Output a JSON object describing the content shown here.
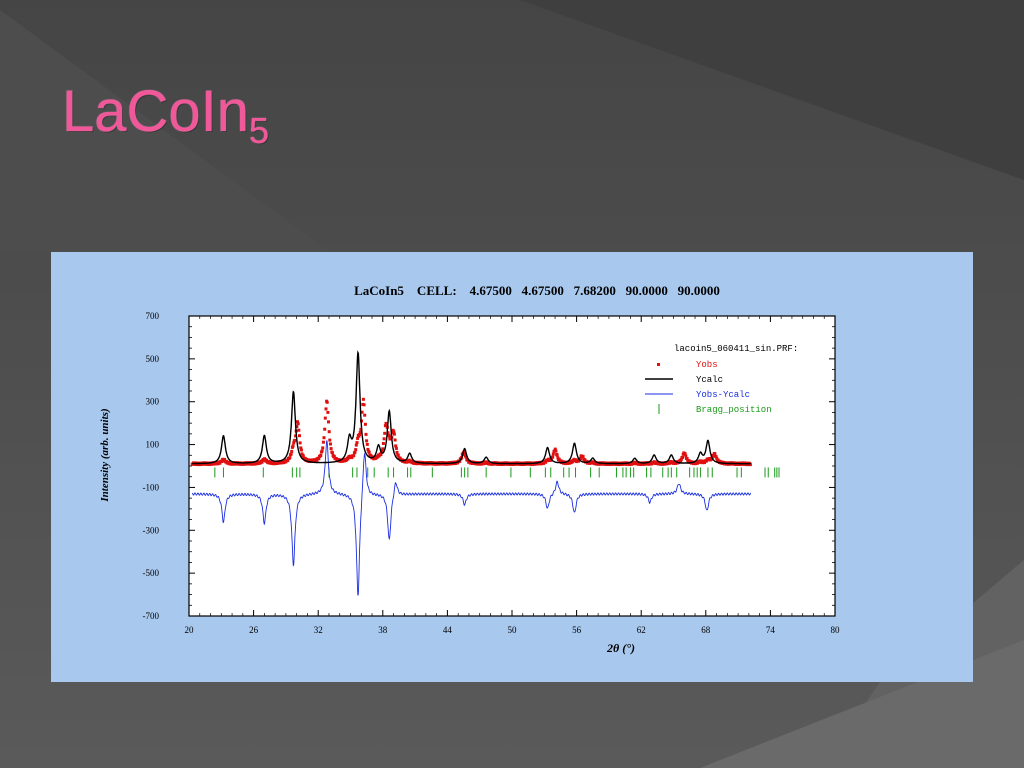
{
  "slide": {
    "title_main": "LaCoIn",
    "title_sub": "5"
  },
  "colors": {
    "title": "#f0589a",
    "panel_bg": "#a8c8ee",
    "yobs": "#e01010",
    "ycalc": "#000000",
    "diff": "#1a2ee0",
    "bragg": "#1a9a1a"
  },
  "chart_data": {
    "type": "line",
    "title": "LaCoIn5    CELL:    4.67500   4.67500   7.68200   90.0000   90.0000",
    "xlabel": "2θ (°)",
    "ylabel": "Intensity (arb. units)",
    "xlim": [
      20,
      80
    ],
    "ylim": [
      -700,
      700
    ],
    "x_ticks": [
      20,
      26,
      32,
      38,
      44,
      50,
      56,
      62,
      68,
      74,
      80
    ],
    "y_ticks": [
      700,
      500,
      300,
      100,
      -100,
      -300,
      -500,
      -700
    ],
    "legend_position": "top-right",
    "legend": {
      "file": "lacoin5_060411_sin.PRF:",
      "entries": [
        "Yobs",
        "Ycalc",
        "Yobs-Ycalc",
        "Bragg_position"
      ]
    },
    "baseline": 10,
    "x_range_data": [
      20.3,
      72.2
    ],
    "ycalc_peaks": [
      {
        "x": 23.2,
        "y": 140
      },
      {
        "x": 27.0,
        "y": 140
      },
      {
        "x": 29.7,
        "y": 345
      },
      {
        "x": 35.7,
        "y": 520
      },
      {
        "x": 34.9,
        "y": 110
      },
      {
        "x": 38.6,
        "y": 250
      },
      {
        "x": 37.6,
        "y": 80
      },
      {
        "x": 40.5,
        "y": 55
      },
      {
        "x": 45.6,
        "y": 80
      },
      {
        "x": 47.6,
        "y": 40
      },
      {
        "x": 53.3,
        "y": 85
      },
      {
        "x": 55.8,
        "y": 105
      },
      {
        "x": 57.5,
        "y": 35
      },
      {
        "x": 61.4,
        "y": 35
      },
      {
        "x": 63.2,
        "y": 50
      },
      {
        "x": 64.8,
        "y": 50
      },
      {
        "x": 68.2,
        "y": 115
      },
      {
        "x": 67.5,
        "y": 55
      }
    ],
    "yobs_peaks": [
      {
        "x": 30.1,
        "y": 190
      },
      {
        "x": 32.8,
        "y": 300
      },
      {
        "x": 36.2,
        "y": 290
      },
      {
        "x": 38.3,
        "y": 170
      },
      {
        "x": 39.0,
        "y": 140
      },
      {
        "x": 45.5,
        "y": 55
      },
      {
        "x": 54.0,
        "y": 75
      },
      {
        "x": 56.5,
        "y": 45
      },
      {
        "x": 66.0,
        "y": 60
      },
      {
        "x": 68.8,
        "y": 55
      }
    ],
    "diff_offset": -130,
    "diff_features": [
      {
        "x": 23.2,
        "y": -260
      },
      {
        "x": 27.0,
        "y": -265
      },
      {
        "x": 29.7,
        "y": -460
      },
      {
        "x": 32.8,
        "y": 120
      },
      {
        "x": 35.7,
        "y": -620
      },
      {
        "x": 36.3,
        "y": 100
      },
      {
        "x": 38.6,
        "y": -350
      },
      {
        "x": 39.2,
        "y": -60
      },
      {
        "x": 45.6,
        "y": -180
      },
      {
        "x": 53.3,
        "y": -200
      },
      {
        "x": 54.2,
        "y": -70
      },
      {
        "x": 55.8,
        "y": -220
      },
      {
        "x": 62.8,
        "y": -170
      },
      {
        "x": 65.5,
        "y": -80
      },
      {
        "x": 68.1,
        "y": -210
      }
    ],
    "bragg_positions": [
      22.4,
      23.2,
      26.9,
      29.6,
      30.0,
      30.3,
      33.0,
      35.2,
      35.6,
      36.6,
      37.2,
      38.5,
      39.0,
      40.3,
      40.6,
      42.6,
      45.3,
      45.6,
      45.9,
      47.6,
      49.9,
      51.7,
      53.1,
      53.6,
      54.8,
      55.3,
      55.9,
      57.3,
      58.1,
      59.7,
      60.3,
      60.6,
      61.0,
      61.3,
      62.5,
      62.9,
      64.0,
      64.5,
      64.8,
      65.3,
      66.5,
      66.9,
      67.2,
      67.5,
      68.2,
      68.6,
      70.9,
      71.3,
      73.5,
      73.8,
      74.4,
      74.6,
      74.8
    ],
    "bragg_y": -30
  }
}
